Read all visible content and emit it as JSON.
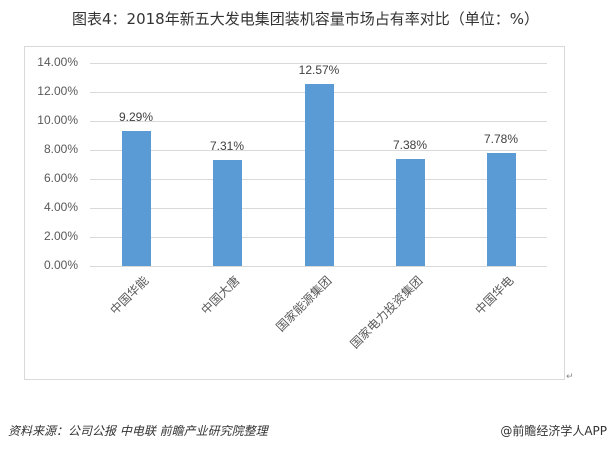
{
  "title": "图表4：2018年新五大发电集团装机容量市场占有率对比（单位：%）",
  "footer": {
    "source": "资料来源：公司公报 中电联 前瞻产业研究院整理",
    "brand": "@前瞻经济学人APP"
  },
  "colors": {
    "bar": "#5B9BD5",
    "grid": "#D9D9D9"
  },
  "chart_data": {
    "type": "bar",
    "title": "图表4：2018年新五大发电集团装机容量市场占有率对比（单位：%）",
    "categories": [
      "中国华能",
      "中国大唐",
      "国家能源集团",
      "国家电力投资集团",
      "中国华电"
    ],
    "values": [
      9.29,
      7.31,
      12.57,
      7.38,
      7.78
    ],
    "data_labels": [
      "9.29%",
      "7.31%",
      "12.57%",
      "7.38%",
      "7.78%"
    ],
    "xlabel": "",
    "ylabel": "",
    "ylim": [
      0,
      14
    ],
    "yticks": [
      "0.00%",
      "2.00%",
      "4.00%",
      "6.00%",
      "8.00%",
      "10.00%",
      "12.00%",
      "14.00%"
    ],
    "grid": true,
    "legend": "none"
  }
}
